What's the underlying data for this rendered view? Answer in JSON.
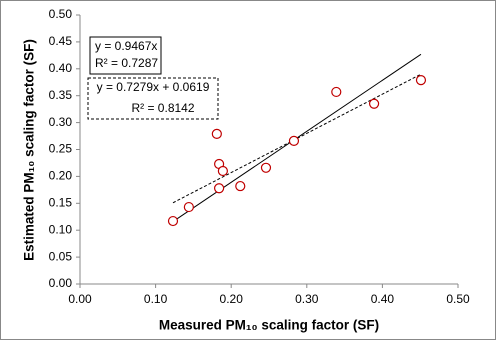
{
  "chart_data": {
    "type": "scatter",
    "x_label": "Measured PM₁₀ scaling factor (SF)",
    "y_label": "Estimated PM₁₀ scaling factor (SF)",
    "x": [
      0.123,
      0.144,
      0.181,
      0.184,
      0.184,
      0.189,
      0.212,
      0.246,
      0.283,
      0.339,
      0.389,
      0.451
    ],
    "values": [
      0.117,
      0.143,
      0.279,
      0.223,
      0.178,
      0.21,
      0.182,
      0.216,
      0.266,
      0.357,
      0.335,
      0.379
    ],
    "color": "#c00000",
    "trendlines": [
      {
        "x": [
          0.123,
          0.451
        ],
        "values": [
          0.116,
          0.427
        ],
        "color": "#000000",
        "dashed": false
      },
      {
        "x": [
          0.123,
          0.451
        ],
        "values": [
          0.151,
          0.39
        ],
        "color": "#000000",
        "dashed": true
      }
    ],
    "annotations": [
      {
        "lines": [
          "y = 0.9467x",
          "R² = 0.7287"
        ],
        "dashed": false
      },
      {
        "lines": [
          "y = 0.7279x + 0.0619",
          "R² = 0.8142"
        ],
        "dashed": true
      }
    ],
    "xlim": [
      0,
      0.5
    ],
    "ylim": [
      0,
      0.5
    ],
    "xticks": [
      {
        "value": 0,
        "label": "0.00"
      },
      {
        "value": 0.1,
        "label": "0.10"
      },
      {
        "value": 0.2,
        "label": "0.20"
      },
      {
        "value": 0.3,
        "label": "0.30"
      },
      {
        "value": 0.4,
        "label": "0.40"
      },
      {
        "value": 0.5,
        "label": "0.50"
      }
    ],
    "yticks": [
      {
        "value": 0,
        "label": "0.00"
      },
      {
        "value": 0.05,
        "label": "0.05"
      },
      {
        "value": 0.1,
        "label": "0.10"
      },
      {
        "value": 0.15,
        "label": "0.15"
      },
      {
        "value": 0.2,
        "label": "0.20"
      },
      {
        "value": 0.25,
        "label": "0.25"
      },
      {
        "value": 0.3,
        "label": "0.30"
      },
      {
        "value": 0.35,
        "label": "0.35"
      },
      {
        "value": 0.4,
        "label": "0.40"
      },
      {
        "value": 0.45,
        "label": "0.45"
      },
      {
        "value": 0.5,
        "label": "0.50"
      }
    ],
    "grid": false
  }
}
